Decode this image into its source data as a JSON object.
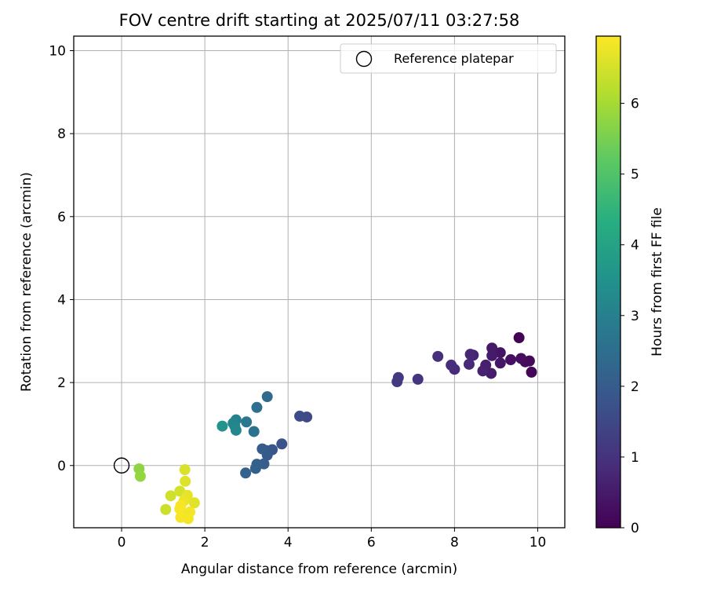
{
  "chart_data": {
    "type": "scatter",
    "title": "FOV centre drift starting at 2025/07/11 03:27:58",
    "xlabel": "Angular distance from reference (arcmin)",
    "ylabel": "Rotation from reference (arcmin)",
    "xlim": [
      -1.15,
      10.65
    ],
    "ylim": [
      -1.5,
      10.35
    ],
    "xticks": [
      0,
      2,
      4,
      6,
      8,
      10
    ],
    "yticks": [
      0,
      2,
      4,
      6,
      8,
      10
    ],
    "grid": true,
    "legend": {
      "label": "Reference platepar",
      "placement": "top-right"
    },
    "colorbar": {
      "label": "Hours from first FF file",
      "range": [
        0,
        6.95
      ],
      "ticks": [
        0,
        1,
        2,
        3,
        4,
        5,
        6
      ],
      "colormap": "viridis"
    },
    "reference_point": {
      "x": 0,
      "y": 0
    },
    "points": [
      {
        "x": 9.55,
        "y": 3.08,
        "c": 0.05
      },
      {
        "x": 9.85,
        "y": 2.25,
        "c": 0.1
      },
      {
        "x": 9.8,
        "y": 2.52,
        "c": 0.15
      },
      {
        "x": 9.7,
        "y": 2.5,
        "c": 0.2
      },
      {
        "x": 9.6,
        "y": 2.58,
        "c": 0.25
      },
      {
        "x": 9.35,
        "y": 2.55,
        "c": 0.3
      },
      {
        "x": 9.1,
        "y": 2.72,
        "c": 0.35
      },
      {
        "x": 9.1,
        "y": 2.47,
        "c": 0.4
      },
      {
        "x": 8.9,
        "y": 2.83,
        "c": 0.45
      },
      {
        "x": 8.9,
        "y": 2.65,
        "c": 0.5
      },
      {
        "x": 8.88,
        "y": 2.22,
        "c": 0.55
      },
      {
        "x": 8.75,
        "y": 2.42,
        "c": 0.6
      },
      {
        "x": 8.68,
        "y": 2.28,
        "c": 0.65
      },
      {
        "x": 8.45,
        "y": 2.66,
        "c": 0.7
      },
      {
        "x": 8.38,
        "y": 2.68,
        "c": 0.75
      },
      {
        "x": 8.35,
        "y": 2.44,
        "c": 0.8
      },
      {
        "x": 8.0,
        "y": 2.32,
        "c": 0.85
      },
      {
        "x": 7.92,
        "y": 2.42,
        "c": 0.9
      },
      {
        "x": 7.6,
        "y": 2.63,
        "c": 0.95
      },
      {
        "x": 7.12,
        "y": 2.08,
        "c": 1.05
      },
      {
        "x": 6.65,
        "y": 2.12,
        "c": 1.1
      },
      {
        "x": 6.62,
        "y": 2.02,
        "c": 1.15
      },
      {
        "x": 4.45,
        "y": 1.17,
        "c": 1.55
      },
      {
        "x": 4.28,
        "y": 1.19,
        "c": 1.6
      },
      {
        "x": 3.85,
        "y": 0.52,
        "c": 1.75
      },
      {
        "x": 3.62,
        "y": 0.38,
        "c": 1.85
      },
      {
        "x": 3.48,
        "y": 0.36,
        "c": 1.9
      },
      {
        "x": 3.5,
        "y": 0.25,
        "c": 1.95
      },
      {
        "x": 3.38,
        "y": 0.4,
        "c": 2.0
      },
      {
        "x": 3.42,
        "y": 0.04,
        "c": 2.05
      },
      {
        "x": 3.25,
        "y": 0.03,
        "c": 2.1
      },
      {
        "x": 3.22,
        "y": -0.07,
        "c": 2.15
      },
      {
        "x": 2.98,
        "y": -0.18,
        "c": 2.2
      },
      {
        "x": 3.5,
        "y": 1.66,
        "c": 2.4
      },
      {
        "x": 3.25,
        "y": 1.4,
        "c": 2.5
      },
      {
        "x": 3.18,
        "y": 0.82,
        "c": 2.6
      },
      {
        "x": 3.0,
        "y": 1.05,
        "c": 2.75
      },
      {
        "x": 2.75,
        "y": 1.1,
        "c": 3.0
      },
      {
        "x": 2.72,
        "y": 0.95,
        "c": 3.1
      },
      {
        "x": 2.68,
        "y": 1.02,
        "c": 3.15
      },
      {
        "x": 2.75,
        "y": 0.85,
        "c": 3.2
      },
      {
        "x": 2.42,
        "y": 0.95,
        "c": 3.55
      },
      {
        "x": 0.42,
        "y": -0.08,
        "c": 5.75
      },
      {
        "x": 0.45,
        "y": -0.26,
        "c": 5.8
      },
      {
        "x": 1.52,
        "y": -0.1,
        "c": 6.55
      },
      {
        "x": 1.53,
        "y": -0.38,
        "c": 6.6
      },
      {
        "x": 1.18,
        "y": -0.73,
        "c": 6.45
      },
      {
        "x": 1.4,
        "y": -0.62,
        "c": 6.5
      },
      {
        "x": 1.58,
        "y": -0.72,
        "c": 6.7
      },
      {
        "x": 1.75,
        "y": -0.9,
        "c": 6.65
      },
      {
        "x": 1.5,
        "y": -0.85,
        "c": 6.75
      },
      {
        "x": 1.42,
        "y": -0.97,
        "c": 6.9
      },
      {
        "x": 1.4,
        "y": -1.05,
        "c": 6.9
      },
      {
        "x": 1.06,
        "y": -1.06,
        "c": 6.4
      },
      {
        "x": 1.64,
        "y": -1.12,
        "c": 6.85
      },
      {
        "x": 1.55,
        "y": -1.2,
        "c": 6.8
      },
      {
        "x": 1.42,
        "y": -1.25,
        "c": 6.9
      },
      {
        "x": 1.6,
        "y": -1.28,
        "c": 6.85
      }
    ]
  }
}
